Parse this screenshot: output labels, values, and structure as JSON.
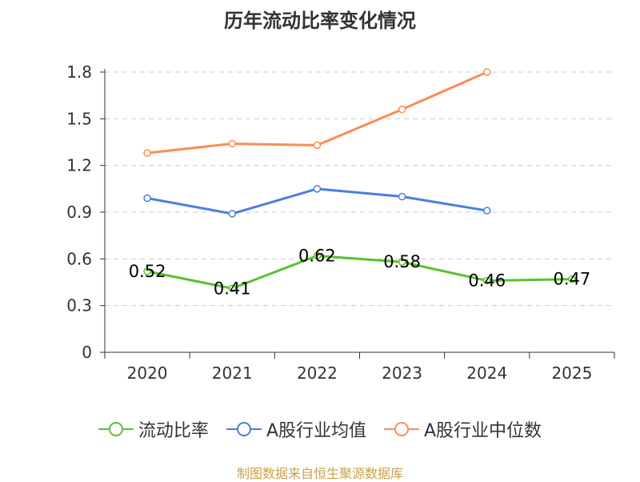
{
  "title": "历年流动比率变化情况",
  "source": "制图数据来自恒生聚源数据库",
  "chart_data": {
    "type": "line",
    "categories": [
      "2020",
      "2021",
      "2022",
      "2023",
      "2024",
      "2025"
    ],
    "ylim": [
      0,
      1.8
    ],
    "yticks": [
      0,
      0.3,
      0.6,
      0.9,
      1.2,
      1.5,
      1.8
    ],
    "grid": true,
    "legend_position": "bottom",
    "series": [
      {
        "name": "流动比率",
        "color": "#5ac130",
        "values": [
          0.52,
          0.41,
          0.62,
          0.58,
          0.46,
          0.47
        ],
        "show_labels": true
      },
      {
        "name": "A股行业均值",
        "color": "#4a7fe0",
        "values": [
          0.99,
          0.89,
          1.05,
          1.0,
          0.91,
          null
        ],
        "show_labels": false
      },
      {
        "name": "A股行业中位数",
        "color": "#fa8d55",
        "values": [
          1.28,
          1.34,
          1.33,
          1.56,
          1.8,
          null
        ],
        "show_labels": false
      }
    ]
  }
}
